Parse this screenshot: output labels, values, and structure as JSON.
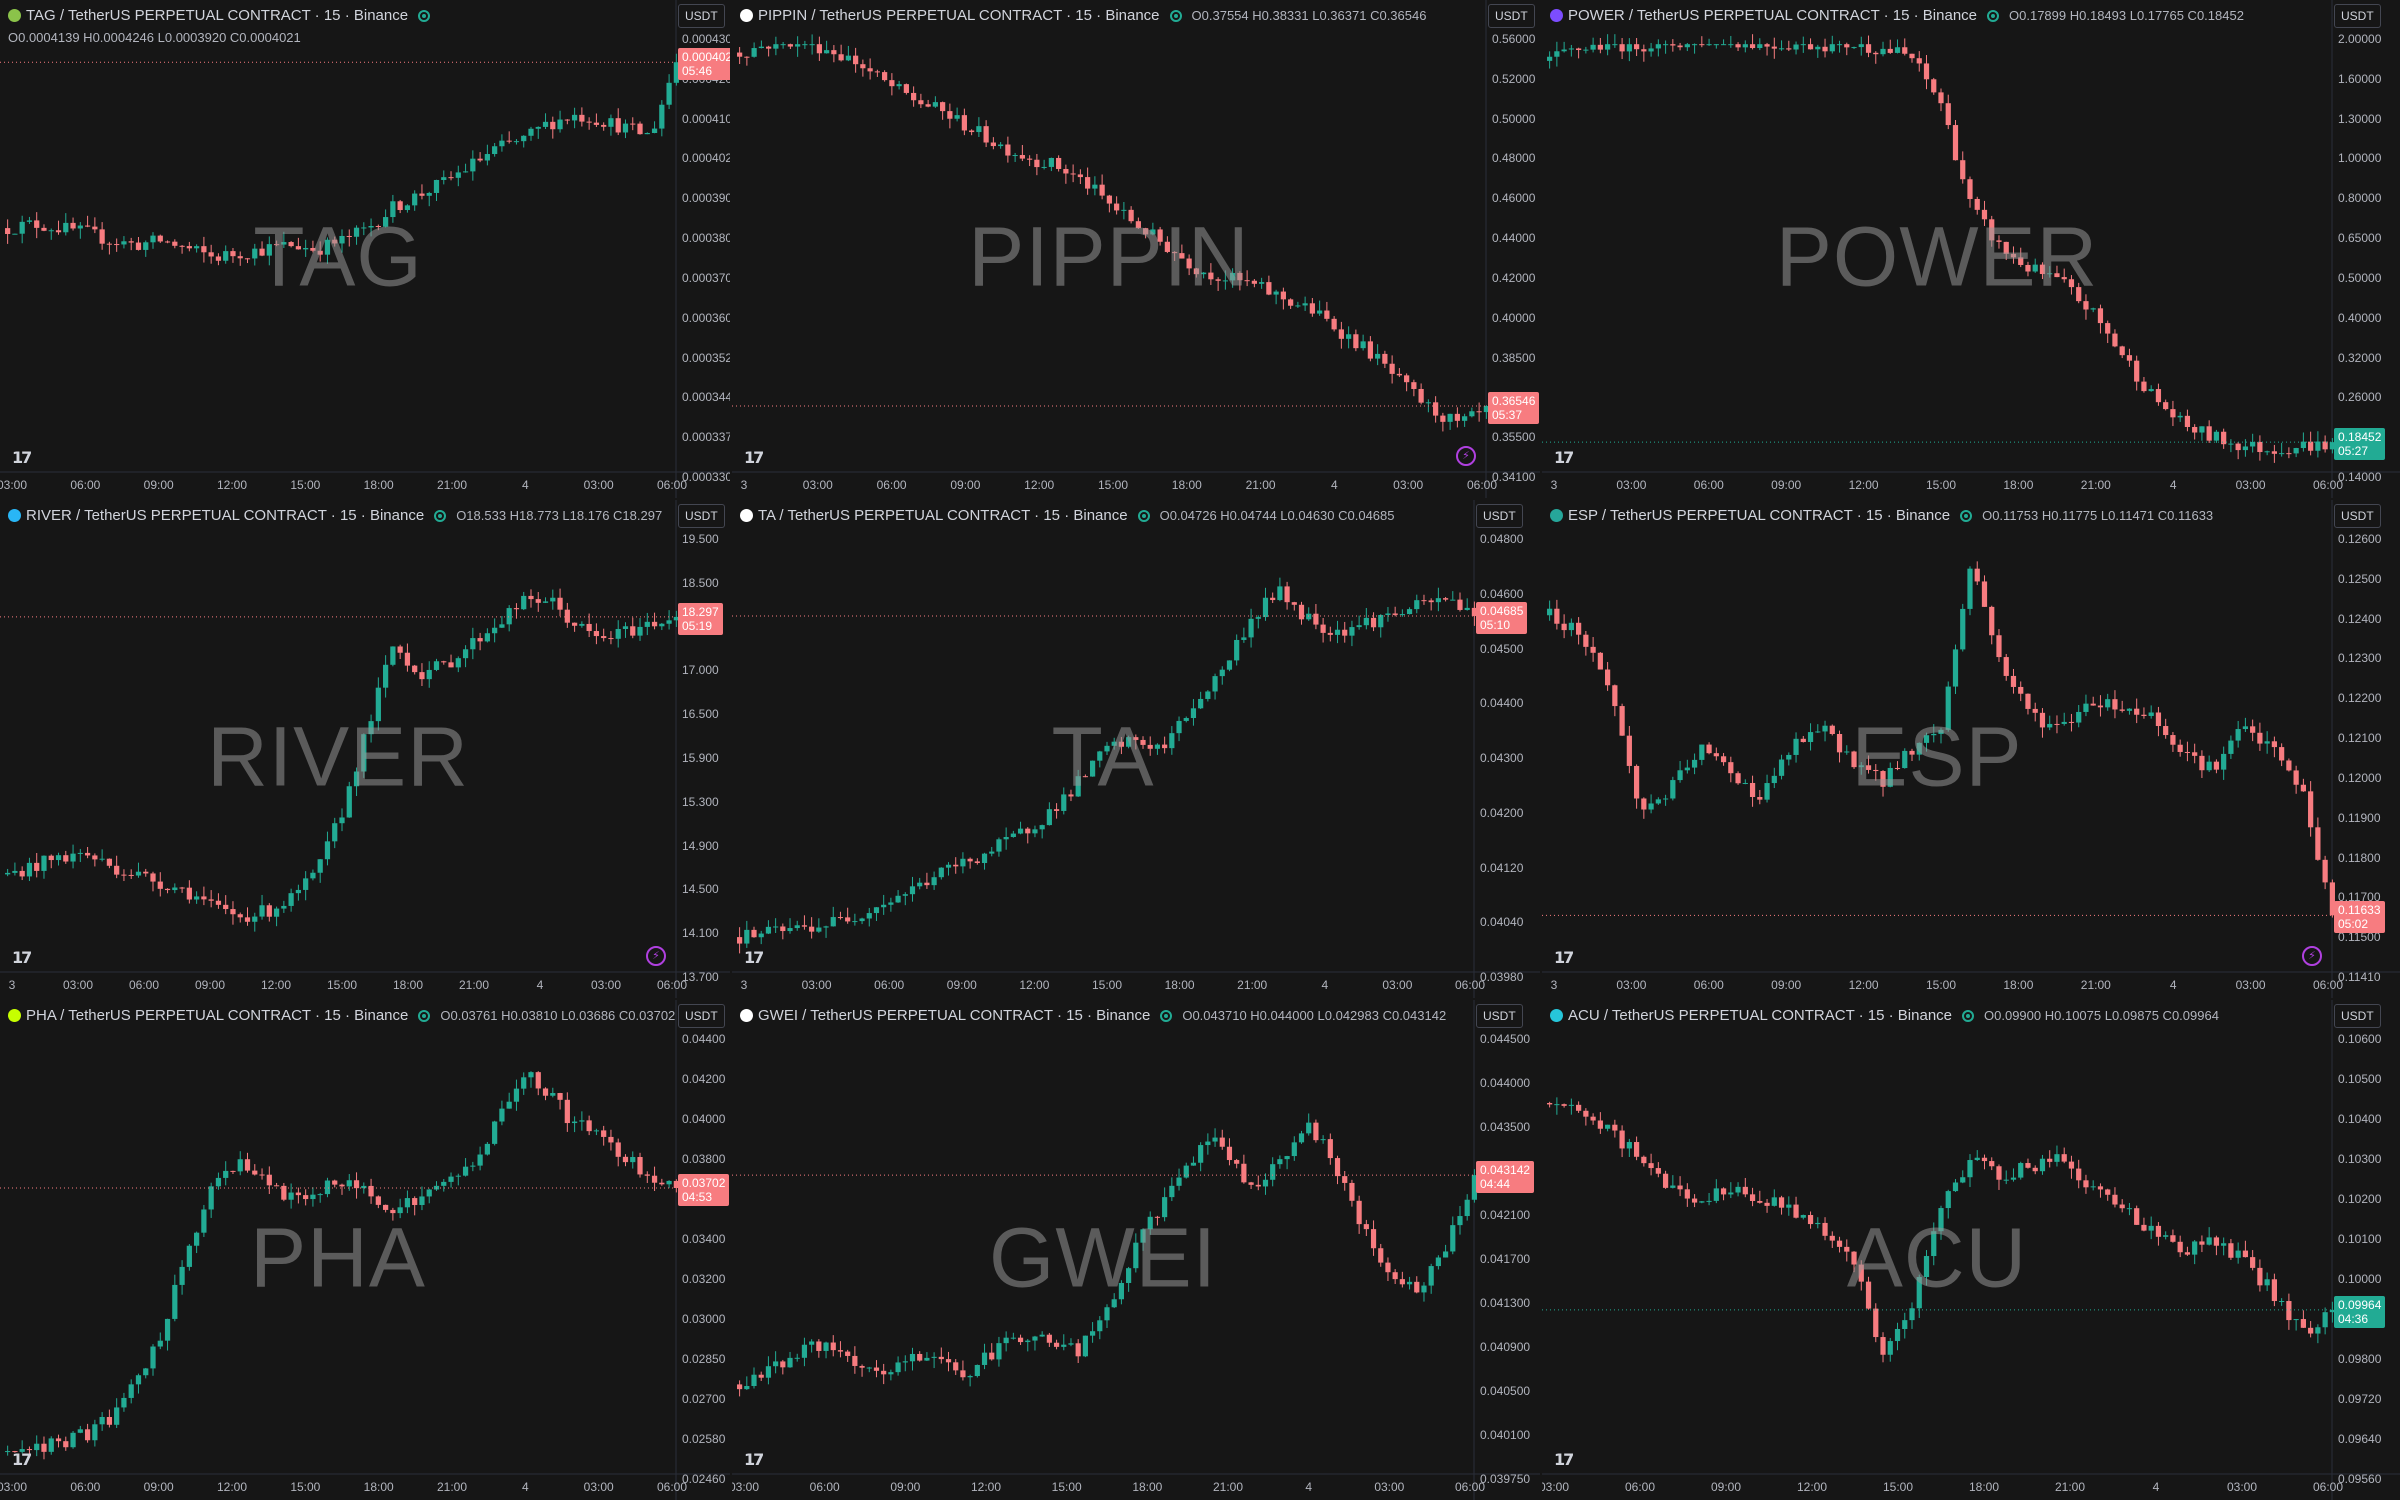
{
  "colors": {
    "up": "#22ab94",
    "down": "#f77c80",
    "background": "#161616",
    "grid_line": "#2a2e39"
  },
  "panels": [
    {
      "symbol": "TAG",
      "title": "TAG / TetherUS PERPETUAL CONTRACT · 15 · Binance",
      "icon_color": "#8bc34a",
      "ohlc": "O0.0004139 H0.0004246 L0.0003920 C0.0004021",
      "ohlc_wrapped": true,
      "ohlc_dir": "dn",
      "unit": "USDT",
      "last_price": "0.0004021",
      "countdown": "05:46",
      "last_dir": "dn",
      "y_ticks": [
        "0.0004300",
        "0.0004200",
        "0.0004100",
        "0.0004021",
        "0.0003900",
        "0.0003800",
        "0.0003700",
        "0.0003600",
        "0.0003520",
        "0.0003440",
        "0.0003370",
        "0.0003305"
      ],
      "x_ticks": [
        "03:00",
        "06:00",
        "09:00",
        "12:00",
        "15:00",
        "18:00",
        "21:00",
        "4",
        "03:00",
        "06:00"
      ],
      "bolt": false
    },
    {
      "symbol": "PIPPIN",
      "title": "PIPPIN / TetherUS PERPETUAL CONTRACT · 15 · Binance",
      "icon_color": "#ffffff",
      "ohlc": "O0.37554 H0.38331 L0.36371 C0.36546",
      "ohlc_wrapped": false,
      "ohlc_dir": "dn",
      "unit": "USDT",
      "last_price": "0.36546",
      "countdown": "05:37",
      "last_dir": "dn",
      "y_ticks": [
        "0.56000",
        "0.52000",
        "0.50000",
        "0.48000",
        "0.46000",
        "0.44000",
        "0.42000",
        "0.40000",
        "0.38500",
        "0.37000",
        "0.35500",
        "0.34100"
      ],
      "x_ticks": [
        "3",
        "03:00",
        "06:00",
        "09:00",
        "12:00",
        "15:00",
        "18:00",
        "21:00",
        "4",
        "03:00",
        "06:00"
      ],
      "bolt": true
    },
    {
      "symbol": "POWER",
      "title": "POWER / TetherUS PERPETUAL CONTRACT · 15 · Binance",
      "icon_color": "#7c4dff",
      "ohlc": "O0.17899 H0.18493 L0.17765 C0.18452",
      "ohlc_wrapped": false,
      "ohlc_dir": "up",
      "unit": "USDT",
      "last_price": "0.18452",
      "countdown": "05:27",
      "last_dir": "up",
      "y_ticks": [
        "2.00000",
        "1.60000",
        "1.30000",
        "1.00000",
        "0.80000",
        "0.65000",
        "0.50000",
        "0.40000",
        "0.32000",
        "0.26000",
        "0.20000",
        "0.14000"
      ],
      "x_ticks": [
        "3",
        "03:00",
        "06:00",
        "09:00",
        "12:00",
        "15:00",
        "18:00",
        "21:00",
        "4",
        "03:00",
        "06:00"
      ],
      "bolt": false
    },
    {
      "symbol": "RIVER",
      "title": "RIVER / TetherUS PERPETUAL CONTRACT · 15 · Binance",
      "icon_color": "#29b6f6",
      "ohlc": "O18.533 H18.773 L18.176 C18.297",
      "ohlc_wrapped": false,
      "ohlc_dir": "dn",
      "unit": "USDT",
      "last_price": "18.297",
      "countdown": "05:19",
      "last_dir": "dn",
      "y_ticks": [
        "19.500",
        "18.500",
        "17.500",
        "17.000",
        "16.500",
        "15.900",
        "15.300",
        "14.900",
        "14.500",
        "14.100",
        "13.700"
      ],
      "x_ticks": [
        "3",
        "03:00",
        "06:00",
        "09:00",
        "12:00",
        "15:00",
        "18:00",
        "21:00",
        "4",
        "03:00",
        "06:00"
      ],
      "bolt": true
    },
    {
      "symbol": "TA",
      "title": "TA / TetherUS PERPETUAL CONTRACT · 15 · Binance",
      "icon_color": "#ffffff",
      "ohlc": "O0.04726 H0.04744 L0.04630 C0.04685",
      "ohlc_wrapped": false,
      "ohlc_dir": "dn",
      "unit": "USDT",
      "last_price": "0.04685",
      "countdown": "05:10",
      "last_dir": "dn",
      "y_ticks": [
        "0.04800",
        "0.04600",
        "0.04500",
        "0.04400",
        "0.04300",
        "0.04200",
        "0.04120",
        "0.04040",
        "0.03980"
      ],
      "x_ticks": [
        "3",
        "03:00",
        "06:00",
        "09:00",
        "12:00",
        "15:00",
        "18:00",
        "21:00",
        "4",
        "03:00",
        "06:00"
      ],
      "bolt": false
    },
    {
      "symbol": "ESP",
      "title": "ESP / TetherUS PERPETUAL CONTRACT · 15 · Binance",
      "icon_color": "#26a69a",
      "ohlc": "O0.11753 H0.11775 L0.11471 C0.11633",
      "ohlc_wrapped": false,
      "ohlc_dir": "dn",
      "unit": "USDT",
      "last_price": "0.11633",
      "countdown": "05:02",
      "last_dir": "dn",
      "y_ticks": [
        "0.12600",
        "0.12500",
        "0.12400",
        "0.12300",
        "0.12200",
        "0.12100",
        "0.12000",
        "0.11900",
        "0.11800",
        "0.11700",
        "0.11500",
        "0.11410"
      ],
      "x_ticks": [
        "3",
        "03:00",
        "06:00",
        "09:00",
        "12:00",
        "15:00",
        "18:00",
        "21:00",
        "4",
        "03:00",
        "06:00"
      ],
      "bolt": true
    },
    {
      "symbol": "PHA",
      "title": "PHA / TetherUS PERPETUAL CONTRACT · 15 · Binance",
      "icon_color": "#c6ff00",
      "ohlc": "O0.03761 H0.03810 L0.03686 C0.03702",
      "ohlc_wrapped": false,
      "ohlc_dir": "dn",
      "unit": "USDT",
      "last_price": "0.03702",
      "countdown": "04:53",
      "last_dir": "dn",
      "y_ticks": [
        "0.04400",
        "0.04200",
        "0.04000",
        "0.03800",
        "0.03600",
        "0.03400",
        "0.03200",
        "0.03000",
        "0.02850",
        "0.02700",
        "0.02580",
        "0.02460"
      ],
      "x_ticks": [
        "03:00",
        "06:00",
        "09:00",
        "12:00",
        "15:00",
        "18:00",
        "21:00",
        "4",
        "03:00",
        "06:00"
      ],
      "bolt": false
    },
    {
      "symbol": "GWEI",
      "title": "GWEI / TetherUS PERPETUAL CONTRACT · 15 · Binance",
      "icon_color": "#ffffff",
      "ohlc": "O0.043710 H0.044000 L0.042983 C0.043142",
      "ohlc_wrapped": false,
      "ohlc_dir": "dn",
      "unit": "USDT",
      "last_price": "0.043142",
      "countdown": "04:44",
      "last_dir": "dn",
      "y_ticks": [
        "0.044500",
        "0.044000",
        "0.043500",
        "0.042500",
        "0.042100",
        "0.041700",
        "0.041300",
        "0.040900",
        "0.040500",
        "0.040100",
        "0.039750"
      ],
      "x_ticks": [
        "03:00",
        "06:00",
        "09:00",
        "12:00",
        "15:00",
        "18:00",
        "21:00",
        "4",
        "03:00",
        "06:00"
      ],
      "bolt": false
    },
    {
      "symbol": "ACU",
      "title": "ACU / TetherUS PERPETUAL CONTRACT · 15 · Binance",
      "icon_color": "#26c6da",
      "ohlc": "O0.09900 H0.10075 L0.09875 C0.09964",
      "ohlc_wrapped": false,
      "ohlc_dir": "up",
      "unit": "USDT",
      "last_price": "0.09964",
      "countdown": "04:36",
      "last_dir": "up",
      "y_ticks": [
        "0.10600",
        "0.10500",
        "0.10400",
        "0.10300",
        "0.10200",
        "0.10100",
        "0.10000",
        "0.09900",
        "0.09800",
        "0.09720",
        "0.09640",
        "0.09560"
      ],
      "x_ticks": [
        "03:00",
        "06:00",
        "09:00",
        "12:00",
        "15:00",
        "18:00",
        "21:00",
        "4",
        "03:00",
        "06:00"
      ],
      "bolt": false
    }
  ],
  "chart_data": [
    {
      "type": "candlestick",
      "symbol": "TAG",
      "trend": [
        0.55,
        0.56,
        0.55,
        0.54,
        0.52,
        0.51,
        0.52,
        0.5,
        0.48,
        0.49,
        0.5,
        0.51,
        0.5,
        0.52,
        0.55,
        0.6,
        0.63,
        0.66,
        0.7,
        0.74,
        0.76,
        0.8,
        0.82,
        0.81,
        0.79,
        0.77,
        0.95
      ]
    },
    {
      "type": "candlestick",
      "symbol": "PIPPIN",
      "trend": [
        0.97,
        0.99,
        1.0,
        0.98,
        0.95,
        0.9,
        0.86,
        0.83,
        0.79,
        0.75,
        0.72,
        0.7,
        0.66,
        0.6,
        0.55,
        0.5,
        0.45,
        0.43,
        0.41,
        0.38,
        0.35,
        0.3,
        0.25,
        0.18,
        0.12,
        0.08,
        0.11
      ]
    },
    {
      "type": "candlestick",
      "symbol": "POWER",
      "trend": [
        0.95,
        0.98,
        0.99,
        0.99,
        0.99,
        1.0,
        1.0,
        0.99,
        0.99,
        0.99,
        0.99,
        0.98,
        0.96,
        0.85,
        0.6,
        0.5,
        0.45,
        0.42,
        0.35,
        0.25,
        0.15,
        0.08,
        0.05,
        0.03,
        0.02,
        0.03,
        0.03
      ]
    },
    {
      "type": "candlestick",
      "symbol": "RIVER",
      "trend": [
        0.2,
        0.22,
        0.24,
        0.25,
        0.22,
        0.2,
        0.18,
        0.16,
        0.12,
        0.1,
        0.11,
        0.14,
        0.2,
        0.35,
        0.55,
        0.75,
        0.68,
        0.7,
        0.75,
        0.8,
        0.85,
        0.86,
        0.8,
        0.76,
        0.78,
        0.8,
        0.82
      ]
    },
    {
      "type": "candlestick",
      "symbol": "TA",
      "trend": [
        0.05,
        0.06,
        0.07,
        0.08,
        0.1,
        0.13,
        0.16,
        0.2,
        0.23,
        0.26,
        0.3,
        0.35,
        0.42,
        0.5,
        0.52,
        0.5,
        0.6,
        0.68,
        0.8,
        0.88,
        0.82,
        0.78,
        0.8,
        0.82,
        0.84,
        0.86,
        0.83
      ]
    },
    {
      "type": "candlestick",
      "symbol": "ESP",
      "trend": [
        0.82,
        0.78,
        0.65,
        0.35,
        0.4,
        0.5,
        0.45,
        0.38,
        0.5,
        0.55,
        0.48,
        0.42,
        0.5,
        0.55,
        0.95,
        0.7,
        0.58,
        0.55,
        0.62,
        0.6,
        0.58,
        0.5,
        0.45,
        0.55,
        0.5,
        0.4,
        0.1
      ]
    },
    {
      "type": "candlestick",
      "symbol": "PHA",
      "trend": [
        0.02,
        0.03,
        0.04,
        0.06,
        0.1,
        0.18,
        0.3,
        0.5,
        0.65,
        0.72,
        0.66,
        0.62,
        0.64,
        0.66,
        0.64,
        0.6,
        0.62,
        0.66,
        0.7,
        0.8,
        0.92,
        0.88,
        0.8,
        0.78,
        0.72,
        0.68,
        0.64
      ]
    },
    {
      "type": "candlestick",
      "symbol": "GWEI",
      "trend": [
        0.18,
        0.22,
        0.25,
        0.28,
        0.22,
        0.2,
        0.24,
        0.25,
        0.2,
        0.26,
        0.3,
        0.28,
        0.26,
        0.35,
        0.5,
        0.62,
        0.72,
        0.76,
        0.65,
        0.7,
        0.8,
        0.72,
        0.55,
        0.45,
        0.4,
        0.5,
        0.68
      ]
    },
    {
      "type": "candlestick",
      "symbol": "ACU",
      "trend": [
        0.85,
        0.82,
        0.78,
        0.72,
        0.65,
        0.62,
        0.64,
        0.62,
        0.6,
        0.55,
        0.5,
        0.25,
        0.35,
        0.6,
        0.72,
        0.68,
        0.7,
        0.72,
        0.65,
        0.6,
        0.55,
        0.5,
        0.52,
        0.48,
        0.4,
        0.3,
        0.35
      ]
    }
  ]
}
